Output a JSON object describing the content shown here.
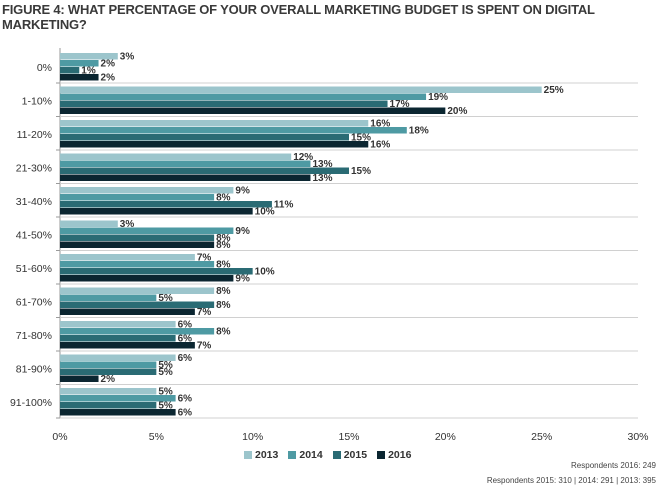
{
  "chart_data": {
    "type": "bar",
    "orientation": "horizontal",
    "title": "FIGURE 4: WHAT PERCENTAGE OF YOUR OVERALL MARKETING BUDGET IS SPENT ON DIGITAL MARKETING?",
    "categories": [
      "0%",
      "1-10%",
      "11-20%",
      "21-30%",
      "31-40%",
      "41-50%",
      "51-60%",
      "61-70%",
      "71-80%",
      "81-90%",
      "91-100%"
    ],
    "series": [
      {
        "name": "2013",
        "color": "#9cc5cc",
        "values": [
          3,
          25,
          16,
          12,
          9,
          3,
          7,
          8,
          6,
          6,
          5
        ]
      },
      {
        "name": "2014",
        "color": "#4e9aa3",
        "values": [
          2,
          19,
          18,
          13,
          8,
          9,
          8,
          5,
          8,
          5,
          6
        ]
      },
      {
        "name": "2015",
        "color": "#2a6b74",
        "values": [
          1,
          17,
          15,
          15,
          11,
          8,
          10,
          8,
          6,
          5,
          5
        ]
      },
      {
        "name": "2016",
        "color": "#0b2631",
        "values": [
          2,
          20,
          16,
          13,
          10,
          8,
          9,
          7,
          7,
          2,
          6
        ]
      }
    ],
    "xlim": [
      0,
      30
    ],
    "xticks": [
      "0%",
      "5%",
      "10%",
      "15%",
      "20%",
      "25%",
      "30%"
    ],
    "value_suffix": "%",
    "legend_position": "bottom",
    "grid": "horizontal separators"
  },
  "footer": {
    "respondents_2016": "Respondents 2016: 249",
    "respondents_other": "Respondents 2015: 310 | 2014: 291 | 2013: 395"
  }
}
